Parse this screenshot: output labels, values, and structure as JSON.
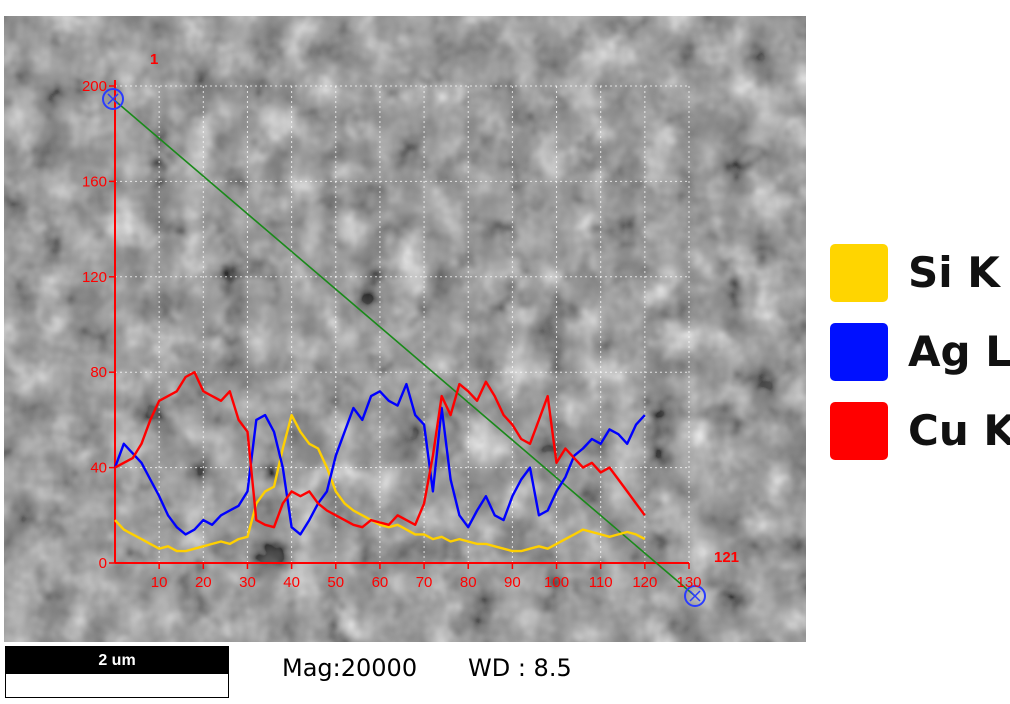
{
  "chart_data": {
    "type": "line",
    "title": "",
    "xlabel": "",
    "ylabel": "",
    "xlim": [
      0,
      130
    ],
    "ylim": [
      0,
      200
    ],
    "x_ticks": [
      10,
      20,
      30,
      40,
      50,
      60,
      70,
      80,
      90,
      100,
      110,
      120,
      130
    ],
    "y_ticks": [
      0,
      40,
      80,
      120,
      160,
      200
    ],
    "grid": true,
    "point_count_label": "121",
    "start_marker_label": "1",
    "axis_color": "#ff0000",
    "scan_line_color": "#1a8a1a",
    "marker_color": "#2a3cff",
    "x": [
      0,
      2,
      4,
      6,
      8,
      10,
      12,
      14,
      16,
      18,
      20,
      22,
      24,
      26,
      28,
      30,
      32,
      34,
      36,
      38,
      40,
      42,
      44,
      46,
      48,
      50,
      52,
      54,
      56,
      58,
      60,
      62,
      64,
      66,
      68,
      70,
      72,
      74,
      76,
      78,
      80,
      82,
      84,
      86,
      88,
      90,
      92,
      94,
      96,
      98,
      100,
      102,
      104,
      106,
      108,
      110,
      112,
      114,
      116,
      118,
      120
    ],
    "series": [
      {
        "name": "Si K",
        "color": "#ffd000",
        "values": [
          18,
          14,
          12,
          10,
          8,
          6,
          7,
          5,
          5,
          6,
          7,
          8,
          9,
          8,
          10,
          11,
          25,
          30,
          32,
          48,
          62,
          55,
          50,
          48,
          40,
          30,
          25,
          22,
          20,
          18,
          16,
          15,
          16,
          14,
          12,
          12,
          10,
          11,
          9,
          10,
          9,
          8,
          8,
          7,
          6,
          5,
          5,
          6,
          7,
          6,
          8,
          10,
          12,
          14,
          13,
          12,
          11,
          12,
          13,
          12,
          10
        ]
      },
      {
        "name": "Ag L",
        "color": "#0000ff",
        "values": [
          40,
          50,
          46,
          42,
          35,
          28,
          20,
          15,
          12,
          14,
          18,
          16,
          20,
          22,
          24,
          30,
          60,
          62,
          55,
          40,
          15,
          12,
          18,
          25,
          30,
          45,
          55,
          65,
          60,
          70,
          72,
          68,
          66,
          75,
          62,
          58,
          30,
          65,
          35,
          20,
          15,
          22,
          28,
          20,
          18,
          28,
          35,
          40,
          20,
          22,
          30,
          36,
          45,
          48,
          52,
          50,
          56,
          54,
          50,
          58,
          62
        ]
      },
      {
        "name": "Cu K",
        "color": "#ff0000",
        "values": [
          40,
          42,
          44,
          50,
          60,
          68,
          70,
          72,
          78,
          80,
          72,
          70,
          68,
          72,
          60,
          55,
          18,
          16,
          15,
          25,
          30,
          28,
          30,
          25,
          22,
          20,
          18,
          16,
          15,
          18,
          17,
          16,
          20,
          18,
          16,
          25,
          45,
          70,
          62,
          75,
          72,
          68,
          76,
          70,
          62,
          58,
          52,
          50,
          60,
          70,
          42,
          48,
          44,
          40,
          42,
          38,
          40,
          35,
          30,
          25,
          20
        ]
      }
    ]
  },
  "legend": {
    "items": [
      {
        "label": "Si K",
        "color": "#ffd500"
      },
      {
        "label": "Ag L",
        "color": "#0010ff"
      },
      {
        "label": "Cu K",
        "color": "#ff0000"
      }
    ]
  },
  "footer": {
    "scale_bar_label": "2 um",
    "magnification": "Mag:20000",
    "working_distance": "WD : 8.5"
  }
}
